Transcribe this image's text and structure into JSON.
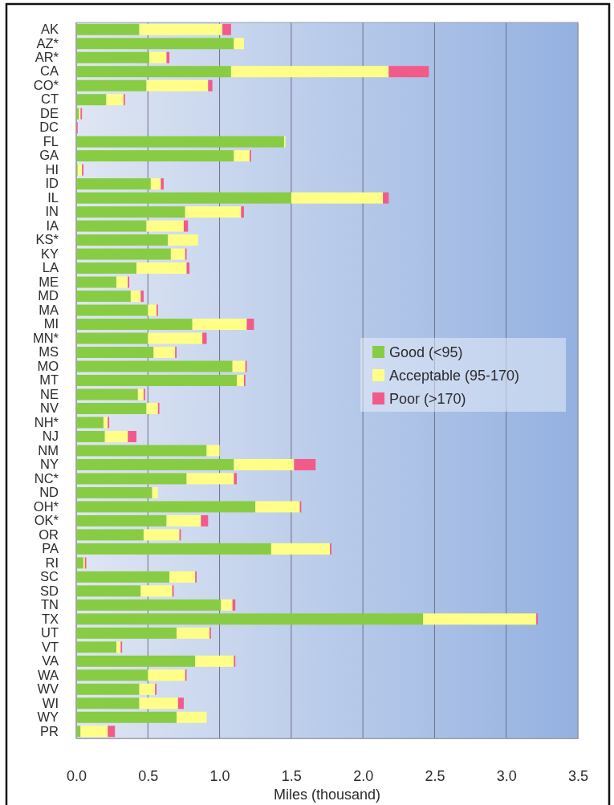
{
  "chart_data": {
    "type": "bar",
    "orientation": "horizontal",
    "stacked": true,
    "categories": [
      "AK",
      "AZ*",
      "AR*",
      "CA",
      "CO*",
      "CT",
      "DE",
      "DC",
      "FL",
      "GA",
      "HI",
      "ID",
      "IL",
      "IN",
      "IA",
      "KS*",
      "KY",
      "LA",
      "ME",
      "MD",
      "MA",
      "MI",
      "MN*",
      "MS",
      "MO",
      "MT",
      "NE",
      "NV",
      "NH*",
      "NJ",
      "NM",
      "NY",
      "NC*",
      "ND",
      "OH*",
      "OK*",
      "OR",
      "PA",
      "RI",
      "SC",
      "SD",
      "TN",
      "TX",
      "UT",
      "VT",
      "VA",
      "WA",
      "WV",
      "WI",
      "WY",
      "PR"
    ],
    "series": [
      {
        "name": "Good (<95)",
        "color": "#88cc44",
        "values": [
          0.44,
          1.1,
          0.51,
          1.08,
          0.49,
          0.21,
          0.02,
          null,
          1.45,
          1.1,
          0.01,
          0.52,
          1.5,
          0.76,
          0.49,
          0.64,
          0.66,
          0.42,
          0.28,
          0.38,
          0.5,
          0.81,
          0.5,
          0.54,
          1.09,
          1.12,
          0.43,
          0.49,
          0.19,
          0.2,
          0.91,
          1.1,
          0.77,
          0.53,
          1.25,
          0.63,
          0.47,
          1.36,
          0.05,
          0.65,
          0.45,
          1.01,
          2.42,
          0.7,
          0.28,
          0.83,
          0.5,
          0.44,
          0.44,
          0.7,
          0.03
        ]
      },
      {
        "name": "Acceptable (95-170)",
        "color": "#ffff88",
        "values": [
          0.58,
          0.07,
          0.12,
          1.1,
          0.43,
          0.12,
          0.01,
          null,
          0.01,
          0.11,
          0.03,
          0.07,
          0.64,
          0.39,
          0.26,
          0.21,
          0.1,
          0.35,
          0.08,
          0.07,
          0.06,
          0.38,
          0.38,
          0.15,
          0.09,
          0.05,
          0.04,
          0.08,
          0.03,
          0.16,
          0.09,
          0.42,
          0.33,
          0.04,
          0.31,
          0.24,
          0.25,
          0.41,
          0.01,
          0.18,
          0.22,
          0.08,
          0.79,
          0.23,
          0.03,
          0.27,
          0.26,
          0.11,
          0.27,
          0.21,
          0.19
        ]
      },
      {
        "name": "Poor (>170)",
        "color": "#f25a8a",
        "values": [
          0.06,
          null,
          0.02,
          0.28,
          0.03,
          0.01,
          0.01,
          0.01,
          null,
          0.01,
          0.01,
          0.02,
          0.04,
          0.02,
          0.03,
          null,
          0.01,
          0.02,
          0.01,
          0.02,
          0.01,
          0.05,
          0.03,
          0.01,
          0.01,
          0.01,
          0.01,
          0.01,
          0.01,
          0.06,
          null,
          0.15,
          0.02,
          null,
          0.01,
          0.05,
          0.01,
          0.01,
          0.01,
          0.01,
          0.01,
          0.02,
          0.01,
          0.01,
          0.01,
          0.01,
          0.01,
          0.01,
          0.04,
          null,
          0.05
        ]
      }
    ],
    "xlim": [
      0,
      3.5
    ],
    "xticks": [
      {
        "value": 0,
        "label": "0.0"
      },
      0.5,
      {
        "value": 1,
        "label": "1.0"
      },
      1.5,
      {
        "value": 2,
        "label": "2.0"
      },
      2.5,
      {
        "value": 3,
        "label": "3.0"
      },
      3.5
    ],
    "xlabel": "Miles (thousand)",
    "grid": "x",
    "legend": "right"
  }
}
